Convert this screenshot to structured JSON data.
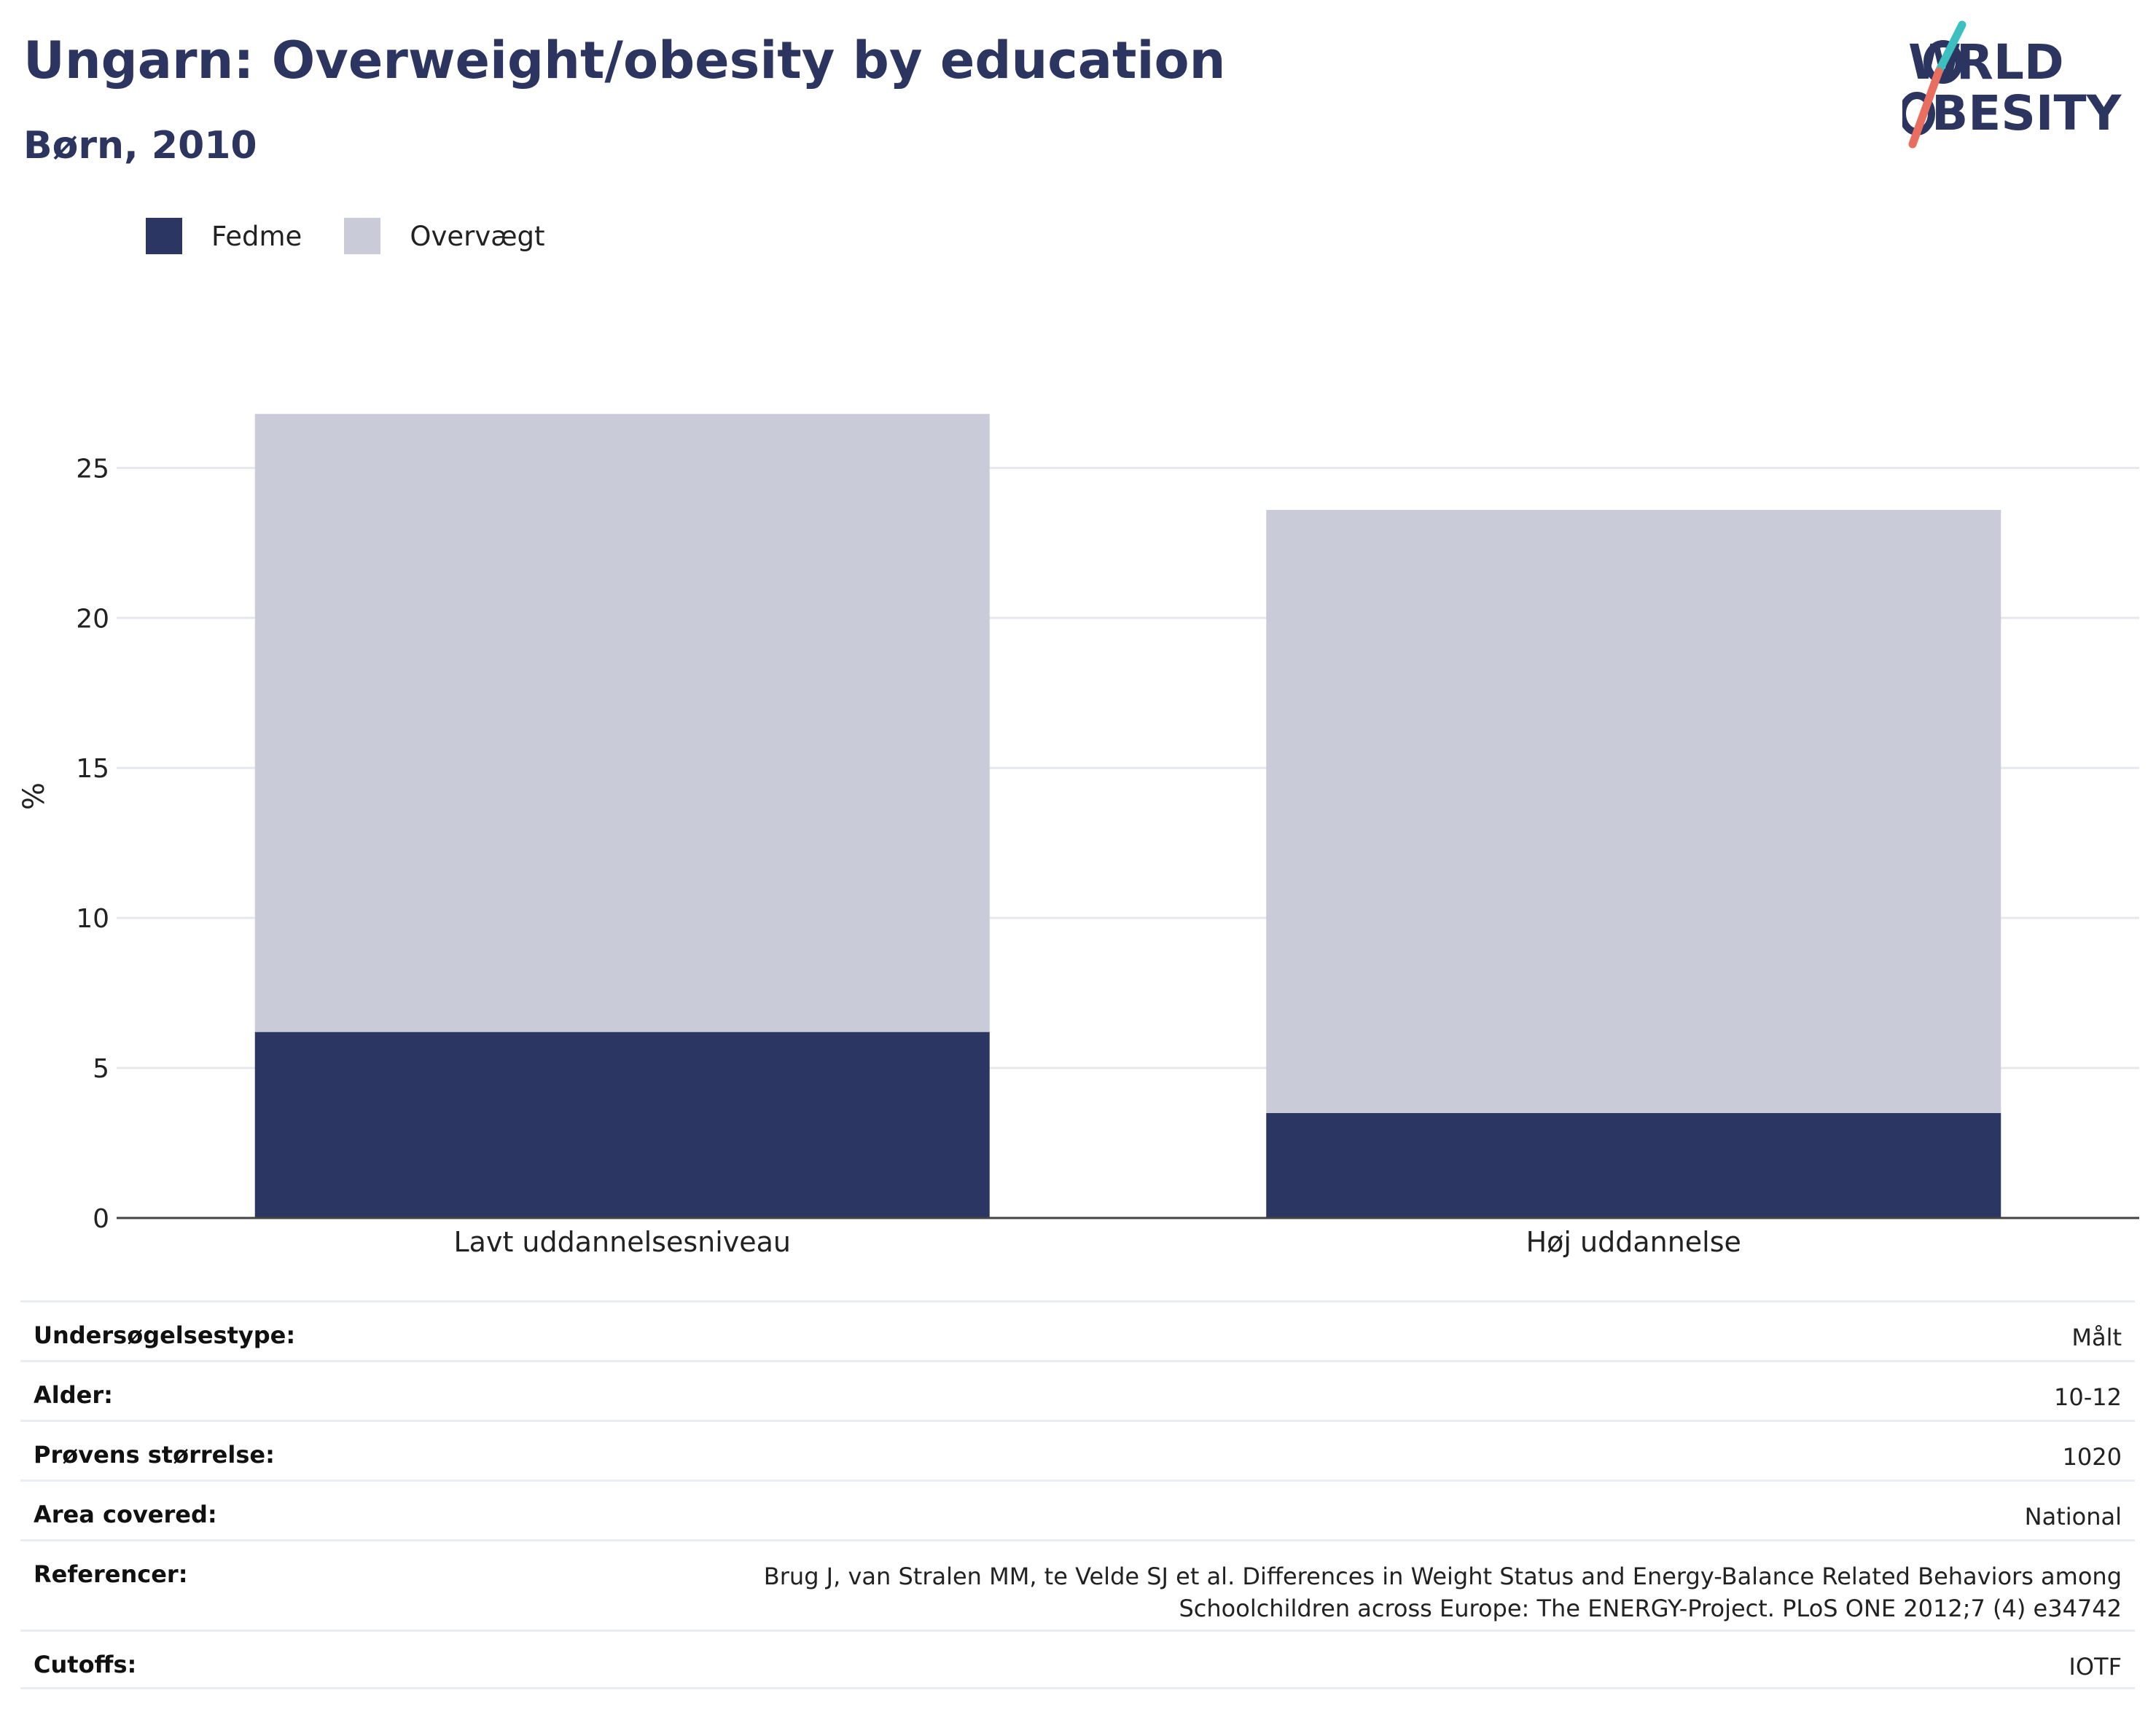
{
  "header": {
    "title": "Ungarn: Overweight/obesity by education",
    "subtitle": "Børn, 2010",
    "logo_text": "WORLD OBESITY"
  },
  "colors": {
    "title": "#2b3560",
    "fedme": "#2b3663",
    "overvaegt": "#c9ccd8",
    "grid": "#e6e8ee",
    "logo_teal": "#3bbfbf",
    "logo_coral": "#e86f5f"
  },
  "legend": [
    {
      "label": "Fedme",
      "color": "#2b3663"
    },
    {
      "label": "Overvægt",
      "color": "#c9ccd8"
    }
  ],
  "chart_data": {
    "type": "bar",
    "stacked": true,
    "categories": [
      "Lavt uddannelsesniveau",
      "Høj uddannelse"
    ],
    "series": [
      {
        "name": "Fedme",
        "values": [
          6.2,
          3.5
        ]
      },
      {
        "name": "Overvægt",
        "values": [
          20.6,
          20.1
        ]
      }
    ],
    "ylabel": "%",
    "ylim": [
      0,
      27
    ],
    "yticks": [
      0,
      5,
      10,
      15,
      20,
      25
    ],
    "grid": true,
    "legend_position": "top-left"
  },
  "details": [
    {
      "label": "Undersøgelsestype:",
      "value": "Målt"
    },
    {
      "label": "Alder:",
      "value": "10-12"
    },
    {
      "label": "Prøvens størrelse:",
      "value": "1020"
    },
    {
      "label": "Area covered:",
      "value": "National"
    },
    {
      "label": "Referencer:",
      "value": "Brug J, van Stralen MM, te Velde SJ et al. Differences in Weight Status and Energy-Balance Related Behaviors among Schoolchildren across Europe: The ENERGY-Project. PLoS ONE 2012;7 (4) e34742"
    },
    {
      "label": "Cutoffs:",
      "value": "IOTF"
    }
  ]
}
